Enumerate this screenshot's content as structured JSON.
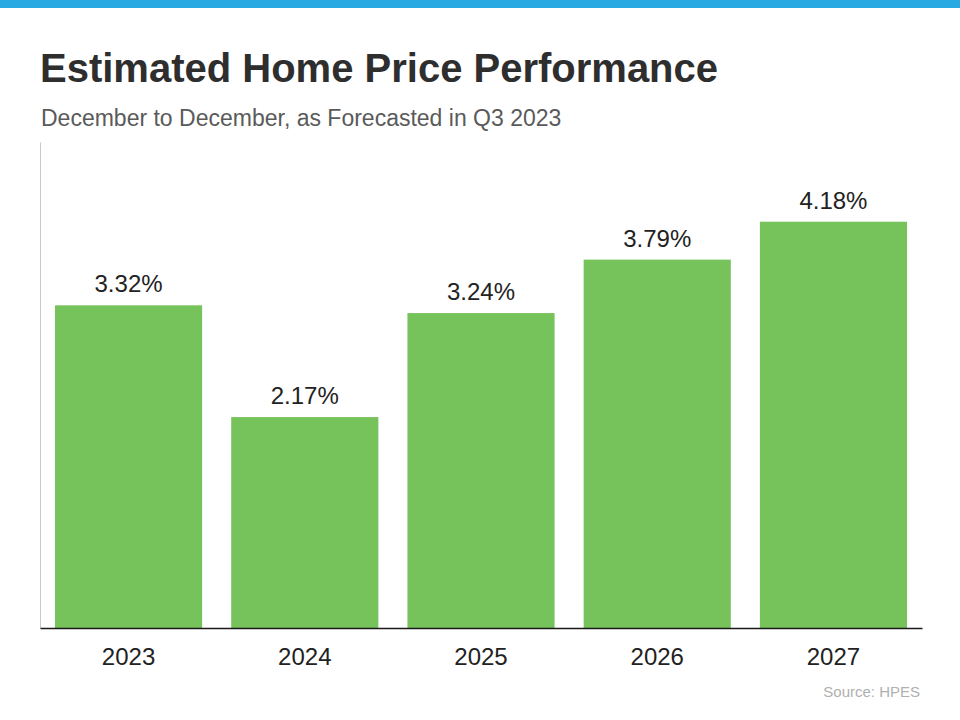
{
  "chart_data": {
    "type": "bar",
    "title": "Estimated Home Price Performance",
    "subtitle": "December to December, as Forecasted in Q3 2023",
    "categories": [
      "2023",
      "2024",
      "2025",
      "2026",
      "2027"
    ],
    "values": [
      3.32,
      2.17,
      3.24,
      3.79,
      4.18
    ],
    "value_labels": [
      "3.32%",
      "2.17%",
      "3.24%",
      "3.79%",
      "4.18%"
    ],
    "data_labels": true,
    "color": "#76c25b",
    "ylim": [
      0,
      5
    ],
    "yticks": [],
    "grid": false,
    "tick_labels": "x",
    "source": "Source: HPES"
  }
}
